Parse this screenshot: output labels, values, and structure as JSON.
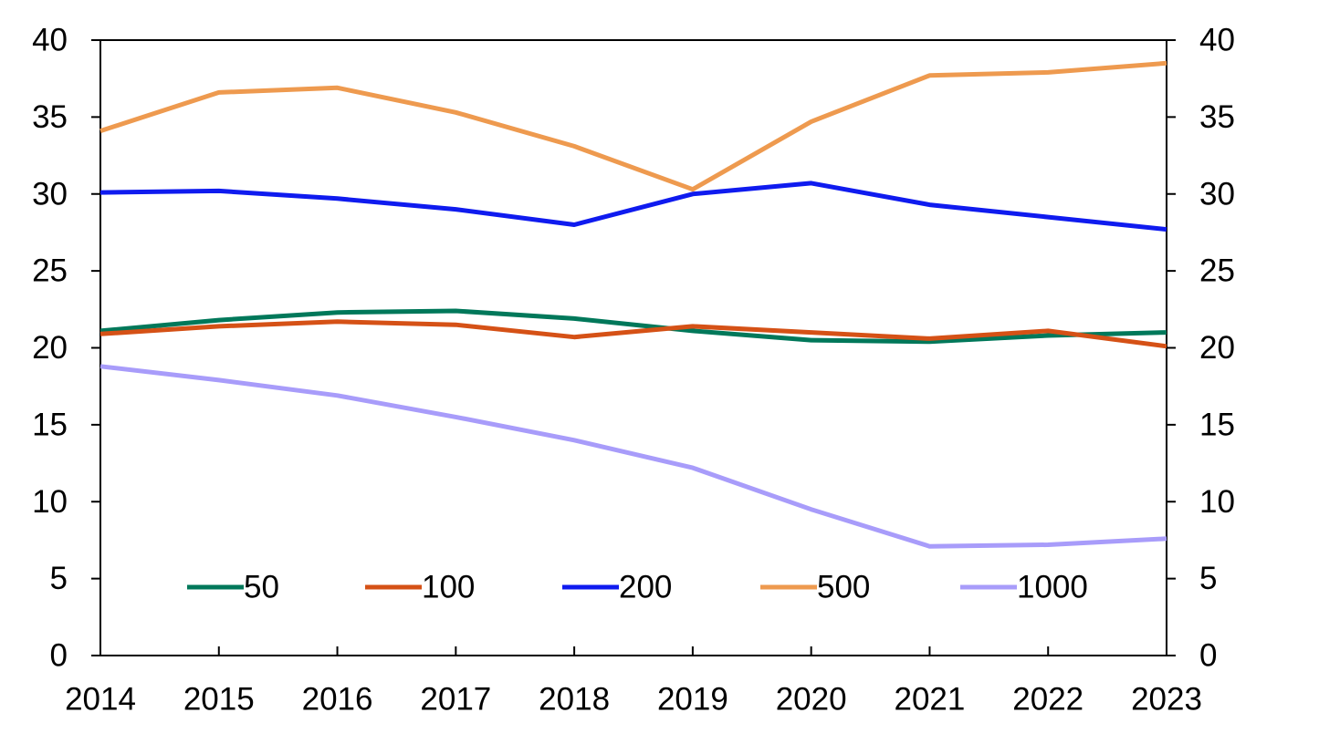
{
  "chart_data": {
    "type": "line",
    "title": "",
    "xlabel": "",
    "ylabel": "",
    "x": [
      "2014",
      "2015",
      "2016",
      "2017",
      "2018",
      "2019",
      "2020",
      "2021",
      "2022",
      "2023"
    ],
    "ylim": [
      0,
      40
    ],
    "yticks": [
      "0",
      "5",
      "10",
      "15",
      "20",
      "25",
      "30",
      "35",
      "40"
    ],
    "y2lim": [
      0,
      40
    ],
    "y2ticks": [
      "0",
      "5",
      "10",
      "15",
      "20",
      "25",
      "30",
      "35",
      "40"
    ],
    "grid": false,
    "legend_position": "bottom",
    "series": [
      {
        "name": "50",
        "color": "#00785a",
        "values": [
          21.1,
          21.8,
          22.3,
          22.4,
          21.9,
          21.1,
          20.5,
          20.4,
          20.8,
          21.0
        ]
      },
      {
        "name": "100",
        "color": "#d55116",
        "values": [
          20.9,
          21.4,
          21.7,
          21.5,
          20.7,
          21.4,
          21.0,
          20.6,
          21.1,
          20.1
        ]
      },
      {
        "name": "200",
        "color": "#0f1bef",
        "values": [
          30.1,
          30.2,
          29.7,
          29.0,
          28.0,
          30.0,
          30.7,
          29.3,
          28.5,
          27.7
        ]
      },
      {
        "name": "500",
        "color": "#ee9a4f",
        "values": [
          34.1,
          36.6,
          36.9,
          35.3,
          33.1,
          30.3,
          34.7,
          37.7,
          37.9,
          38.5
        ]
      },
      {
        "name": "1000",
        "color": "#a89cfa",
        "values": [
          18.8,
          17.9,
          16.9,
          15.5,
          14.0,
          12.2,
          9.5,
          7.1,
          7.2,
          7.6
        ]
      }
    ]
  }
}
